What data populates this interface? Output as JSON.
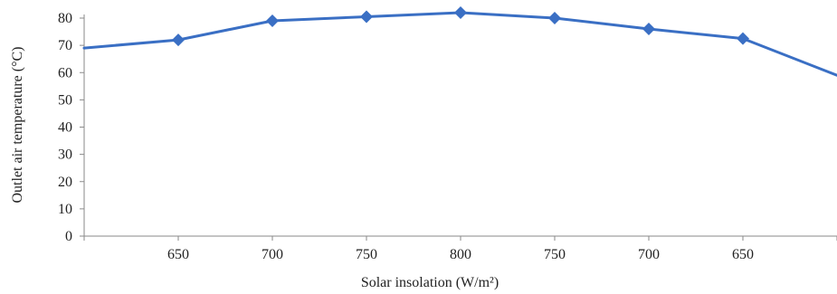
{
  "chart_data": {
    "type": "line",
    "title": "",
    "xlabel": "Solar insolation (W/m²)",
    "ylabel": "Outlet air temperature (°C)",
    "ylim": [
      0,
      80
    ],
    "yticks": [
      0,
      10,
      20,
      30,
      40,
      50,
      60,
      70,
      80
    ],
    "x": [
      "",
      "650",
      "700",
      "750",
      "800",
      "750",
      "700",
      "650",
      ""
    ],
    "series": [
      {
        "values": [
          69,
          72,
          79,
          80.5,
          82,
          80,
          76,
          72.5,
          59
        ]
      }
    ],
    "colors": {
      "line": "#3a6fc4",
      "marker": "#3a6fc4",
      "axis": "#8a8a8a"
    },
    "grid": false,
    "marker": "diamond"
  }
}
